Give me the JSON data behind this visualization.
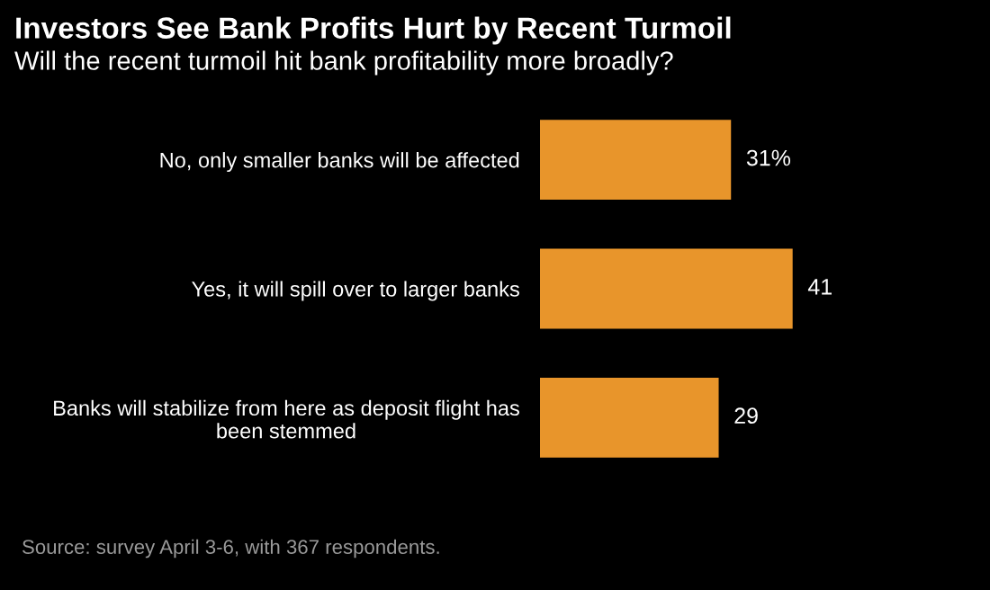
{
  "chart_data": {
    "type": "bar",
    "orientation": "horizontal",
    "title": "Investors See Bank Profits Hurt by Recent Turmoil",
    "subtitle": "Will the recent turmoil hit bank profitability more broadly?",
    "categories": [
      "No, only smaller banks will be affected",
      "Yes, it will spill over to larger banks",
      "Banks will stabilize from here as deposit flight has\nbeen stemmed"
    ],
    "values": [
      31,
      41,
      29
    ],
    "value_labels": [
      "31%",
      "41",
      "29"
    ],
    "color": "#e8952b",
    "annotations": [
      "Source: survey April 3-6, with 367 respondents."
    ]
  }
}
